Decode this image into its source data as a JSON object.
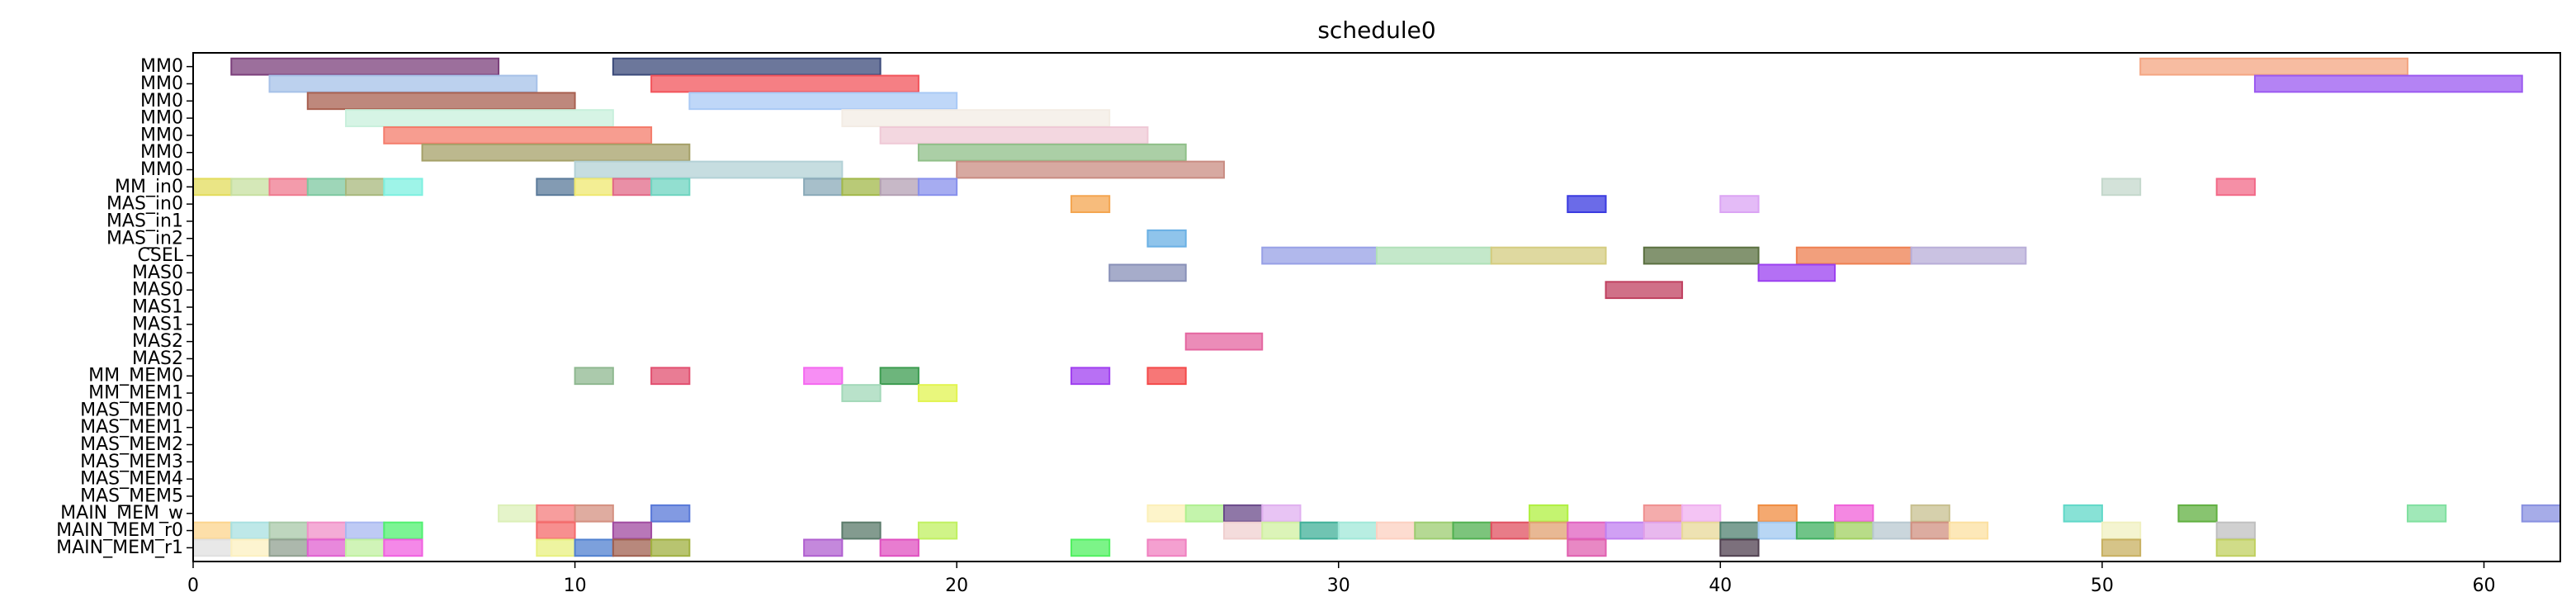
{
  "chart_data": {
    "type": "gantt",
    "title": "schedule0",
    "xlabel": "",
    "ylabel": "",
    "xlim": [
      0,
      62
    ],
    "grid": false,
    "x_ticks": [
      0,
      10,
      20,
      30,
      40,
      50,
      60
    ],
    "rows": [
      "MM0",
      "MM0",
      "MM0",
      "MM0",
      "MM0",
      "MM0",
      "MM0",
      "MM_in0",
      "MAS_in0",
      "MAS_in1",
      "MAS_in2",
      "CSEL",
      "MAS0",
      "MAS0",
      "MAS1",
      "MAS1",
      "MAS2",
      "MAS2",
      "MM_MEM0",
      "MM_MEM1",
      "MAS_MEM0",
      "MAS_MEM1",
      "MAS_MEM2",
      "MAS_MEM3",
      "MAS_MEM4",
      "MAS_MEM5",
      "MAIN_MEM_w",
      "MAIN_MEM_r0",
      "MAIN_MEM_r1"
    ],
    "tasks": [
      {
        "row": 0,
        "start": 1,
        "end": 8,
        "color": "#7b3f7b"
      },
      {
        "row": 0,
        "start": 11,
        "end": 18,
        "color": "#3b4a7a"
      },
      {
        "row": 0,
        "start": 51,
        "end": 58,
        "color": "#f4a582"
      },
      {
        "row": 1,
        "start": 2,
        "end": 9,
        "color": "#a6c1e8"
      },
      {
        "row": 1,
        "start": 12,
        "end": 19,
        "color": "#f2545b"
      },
      {
        "row": 1,
        "start": 54,
        "end": 61,
        "color": "#9b59f0"
      },
      {
        "row": 2,
        "start": 3,
        "end": 10,
        "color": "#a86050"
      },
      {
        "row": 2,
        "start": 13,
        "end": 20,
        "color": "#a9c9f5"
      },
      {
        "row": 3,
        "start": 4,
        "end": 11,
        "color": "#c8f0dc"
      },
      {
        "row": 3,
        "start": 17,
        "end": 24,
        "color": "#f3ece4"
      },
      {
        "row": 4,
        "start": 5,
        "end": 12,
        "color": "#f47c6b"
      },
      {
        "row": 4,
        "start": 18,
        "end": 25,
        "color": "#efc9d6"
      },
      {
        "row": 5,
        "start": 6,
        "end": 13,
        "color": "#a5a068"
      },
      {
        "row": 5,
        "start": 19,
        "end": 26,
        "color": "#8fbf88"
      },
      {
        "row": 6,
        "start": 10,
        "end": 17,
        "color": "#b3d1d6"
      },
      {
        "row": 6,
        "start": 20,
        "end": 27,
        "color": "#c98c82"
      },
      {
        "row": 7,
        "start": 0,
        "end": 1,
        "color": "#e3dc5c"
      },
      {
        "row": 7,
        "start": 1,
        "end": 2,
        "color": "#c7e0a0"
      },
      {
        "row": 7,
        "start": 2,
        "end": 3,
        "color": "#ef7a8f"
      },
      {
        "row": 7,
        "start": 3,
        "end": 4,
        "color": "#7ec8a0"
      },
      {
        "row": 7,
        "start": 4,
        "end": 5,
        "color": "#a8b87c"
      },
      {
        "row": 7,
        "start": 5,
        "end": 6,
        "color": "#7ef0e0"
      },
      {
        "row": 7,
        "start": 9,
        "end": 10,
        "color": "#5a7a9a"
      },
      {
        "row": 7,
        "start": 10,
        "end": 11,
        "color": "#efe870"
      },
      {
        "row": 7,
        "start": 11,
        "end": 12,
        "color": "#e26a88"
      },
      {
        "row": 7,
        "start": 12,
        "end": 13,
        "color": "#6ed4c0"
      },
      {
        "row": 7,
        "start": 16,
        "end": 17,
        "color": "#8aaab8"
      },
      {
        "row": 7,
        "start": 17,
        "end": 18,
        "color": "#a2b84a"
      },
      {
        "row": 7,
        "start": 18,
        "end": 19,
        "color": "#b4a0b4"
      },
      {
        "row": 7,
        "start": 19,
        "end": 20,
        "color": "#8890ec"
      },
      {
        "row": 7,
        "start": 50,
        "end": 51,
        "color": "#c4d8cc"
      },
      {
        "row": 7,
        "start": 53,
        "end": 54,
        "color": "#f26a88"
      },
      {
        "row": 8,
        "start": 23,
        "end": 24,
        "color": "#f4a550"
      },
      {
        "row": 8,
        "start": 36,
        "end": 37,
        "color": "#3a3ae0"
      },
      {
        "row": 8,
        "start": 40,
        "end": 41,
        "color": "#dba4f4"
      },
      {
        "row": 10,
        "start": 25,
        "end": 26,
        "color": "#6ab0e4"
      },
      {
        "row": 11,
        "start": 28,
        "end": 31,
        "color": "#97a0e6"
      },
      {
        "row": 11,
        "start": 31,
        "end": 34,
        "color": "#b0e0b8"
      },
      {
        "row": 11,
        "start": 34,
        "end": 37,
        "color": "#d4cc80"
      },
      {
        "row": 11,
        "start": 38,
        "end": 41,
        "color": "#5a7040"
      },
      {
        "row": 11,
        "start": 42,
        "end": 45,
        "color": "#ee7f50"
      },
      {
        "row": 11,
        "start": 45,
        "end": 48,
        "color": "#b8aed8"
      },
      {
        "row": 12,
        "start": 24,
        "end": 26,
        "color": "#8890b8"
      },
      {
        "row": 12,
        "start": 41,
        "end": 43,
        "color": "#9b40f0"
      },
      {
        "row": 13,
        "start": 37,
        "end": 39,
        "color": "#c04060"
      },
      {
        "row": 16,
        "start": 26,
        "end": 28,
        "color": "#e466a0"
      },
      {
        "row": 18,
        "start": 10,
        "end": 11,
        "color": "#8fb890"
      },
      {
        "row": 18,
        "start": 12,
        "end": 13,
        "color": "#e25070"
      },
      {
        "row": 18,
        "start": 16,
        "end": 17,
        "color": "#f468f0"
      },
      {
        "row": 18,
        "start": 18,
        "end": 19,
        "color": "#3c9c50"
      },
      {
        "row": 18,
        "start": 23,
        "end": 24,
        "color": "#a040f0"
      },
      {
        "row": 18,
        "start": 25,
        "end": 26,
        "color": "#f44a4a"
      },
      {
        "row": 19,
        "start": 17,
        "end": 18,
        "color": "#a2d8b8"
      },
      {
        "row": 19,
        "start": 19,
        "end": 20,
        "color": "#e2f450"
      },
      {
        "row": 26,
        "start": 8,
        "end": 9,
        "color": "#dcf0b8"
      },
      {
        "row": 26,
        "start": 9,
        "end": 10,
        "color": "#f47c7c"
      },
      {
        "row": 26,
        "start": 10,
        "end": 11,
        "color": "#d49080"
      },
      {
        "row": 26,
        "start": 12,
        "end": 13,
        "color": "#5878d8"
      },
      {
        "row": 26,
        "start": 25,
        "end": 26,
        "color": "#fcf0b8"
      },
      {
        "row": 26,
        "start": 26,
        "end": 27,
        "color": "#b0f090"
      },
      {
        "row": 26,
        "start": 27,
        "end": 28,
        "color": "#6a4a8a"
      },
      {
        "row": 26,
        "start": 28,
        "end": 29,
        "color": "#e0b0f0"
      },
      {
        "row": 26,
        "start": 35,
        "end": 36,
        "color": "#b0f040"
      },
      {
        "row": 26,
        "start": 38,
        "end": 39,
        "color": "#f09090"
      },
      {
        "row": 26,
        "start": 39,
        "end": 40,
        "color": "#f0b0f0"
      },
      {
        "row": 26,
        "start": 41,
        "end": 42,
        "color": "#f08c40"
      },
      {
        "row": 26,
        "start": 43,
        "end": 44,
        "color": "#f060d8"
      },
      {
        "row": 26,
        "start": 45,
        "end": 46,
        "color": "#c8c090"
      },
      {
        "row": 26,
        "start": 49,
        "end": 50,
        "color": "#60d8c8"
      },
      {
        "row": 26,
        "start": 52,
        "end": 53,
        "color": "#60b040"
      },
      {
        "row": 26,
        "start": 58,
        "end": 59,
        "color": "#80e0a0"
      },
      {
        "row": 26,
        "start": 61,
        "end": 62,
        "color": "#8890e0"
      },
      {
        "row": 27,
        "start": 0,
        "end": 1,
        "color": "#fcd48c"
      },
      {
        "row": 27,
        "start": 1,
        "end": 2,
        "color": "#a8e0e0"
      },
      {
        "row": 27,
        "start": 2,
        "end": 3,
        "color": "#a8c8a8"
      },
      {
        "row": 27,
        "start": 3,
        "end": 4,
        "color": "#f090c8"
      },
      {
        "row": 27,
        "start": 4,
        "end": 5,
        "color": "#a8b8f0"
      },
      {
        "row": 27,
        "start": 5,
        "end": 6,
        "color": "#50f070"
      },
      {
        "row": 27,
        "start": 9,
        "end": 10,
        "color": "#f46a6a"
      },
      {
        "row": 27,
        "start": 11,
        "end": 12,
        "color": "#a04aa0"
      },
      {
        "row": 27,
        "start": 17,
        "end": 18,
        "color": "#5a7a6a"
      },
      {
        "row": 27,
        "start": 19,
        "end": 20,
        "color": "#c0f060"
      },
      {
        "row": 27,
        "start": 27,
        "end": 28,
        "color": "#f0d0d0"
      },
      {
        "row": 27,
        "start": 28,
        "end": 29,
        "color": "#d0f0a0"
      },
      {
        "row": 27,
        "start": 29,
        "end": 30,
        "color": "#40b098"
      },
      {
        "row": 27,
        "start": 30,
        "end": 31,
        "color": "#a0e8d8"
      },
      {
        "row": 27,
        "start": 31,
        "end": 32,
        "color": "#fcd0c0"
      },
      {
        "row": 27,
        "start": 32,
        "end": 33,
        "color": "#9ccc70"
      },
      {
        "row": 27,
        "start": 33,
        "end": 34,
        "color": "#50b050"
      },
      {
        "row": 27,
        "start": 34,
        "end": 35,
        "color": "#e05060"
      },
      {
        "row": 27,
        "start": 35,
        "end": 36,
        "color": "#e0a070"
      },
      {
        "row": 27,
        "start": 36,
        "end": 37,
        "color": "#e060c0"
      },
      {
        "row": 27,
        "start": 37,
        "end": 38,
        "color": "#c080f0"
      },
      {
        "row": 27,
        "start": 38,
        "end": 39,
        "color": "#e0a0e8"
      },
      {
        "row": 27,
        "start": 39,
        "end": 40,
        "color": "#e8d898"
      },
      {
        "row": 27,
        "start": 40,
        "end": 41,
        "color": "#508070"
      },
      {
        "row": 27,
        "start": 41,
        "end": 42,
        "color": "#a0c8f0"
      },
      {
        "row": 27,
        "start": 42,
        "end": 43,
        "color": "#40b060"
      },
      {
        "row": 27,
        "start": 43,
        "end": 44,
        "color": "#a0d060"
      },
      {
        "row": 27,
        "start": 44,
        "end": 45,
        "color": "#b8c8d0"
      },
      {
        "row": 27,
        "start": 45,
        "end": 46,
        "color": "#d09080"
      },
      {
        "row": 27,
        "start": 46,
        "end": 47,
        "color": "#fce0a0"
      },
      {
        "row": 27,
        "start": 50,
        "end": 51,
        "color": "#f0f0c0"
      },
      {
        "row": 27,
        "start": 53,
        "end": 54,
        "color": "#c0c0c0"
      },
      {
        "row": 28,
        "start": 0,
        "end": 1,
        "color": "#e0e0e0"
      },
      {
        "row": 28,
        "start": 1,
        "end": 2,
        "color": "#fcf0c0"
      },
      {
        "row": 28,
        "start": 2,
        "end": 3,
        "color": "#90a090"
      },
      {
        "row": 28,
        "start": 3,
        "end": 4,
        "color": "#e060d0"
      },
      {
        "row": 28,
        "start": 4,
        "end": 5,
        "color": "#c0f0a0"
      },
      {
        "row": 28,
        "start": 5,
        "end": 6,
        "color": "#f060e0"
      },
      {
        "row": 28,
        "start": 9,
        "end": 10,
        "color": "#e8f080"
      },
      {
        "row": 28,
        "start": 10,
        "end": 11,
        "color": "#5080d0"
      },
      {
        "row": 28,
        "start": 11,
        "end": 12,
        "color": "#a06050"
      },
      {
        "row": 28,
        "start": 12,
        "end": 13,
        "color": "#a0b040"
      },
      {
        "row": 28,
        "start": 16,
        "end": 17,
        "color": "#b060d0"
      },
      {
        "row": 28,
        "start": 18,
        "end": 19,
        "color": "#e050c0"
      },
      {
        "row": 28,
        "start": 23,
        "end": 24,
        "color": "#50f060"
      },
      {
        "row": 28,
        "start": 25,
        "end": 26,
        "color": "#f080c0"
      },
      {
        "row": 28,
        "start": 36,
        "end": 37,
        "color": "#e060b0"
      },
      {
        "row": 28,
        "start": 40,
        "end": 41,
        "color": "#504050"
      },
      {
        "row": 28,
        "start": 50,
        "end": 51,
        "color": "#c8b060"
      },
      {
        "row": 28,
        "start": 53,
        "end": 54,
        "color": "#c0d060"
      }
    ]
  }
}
